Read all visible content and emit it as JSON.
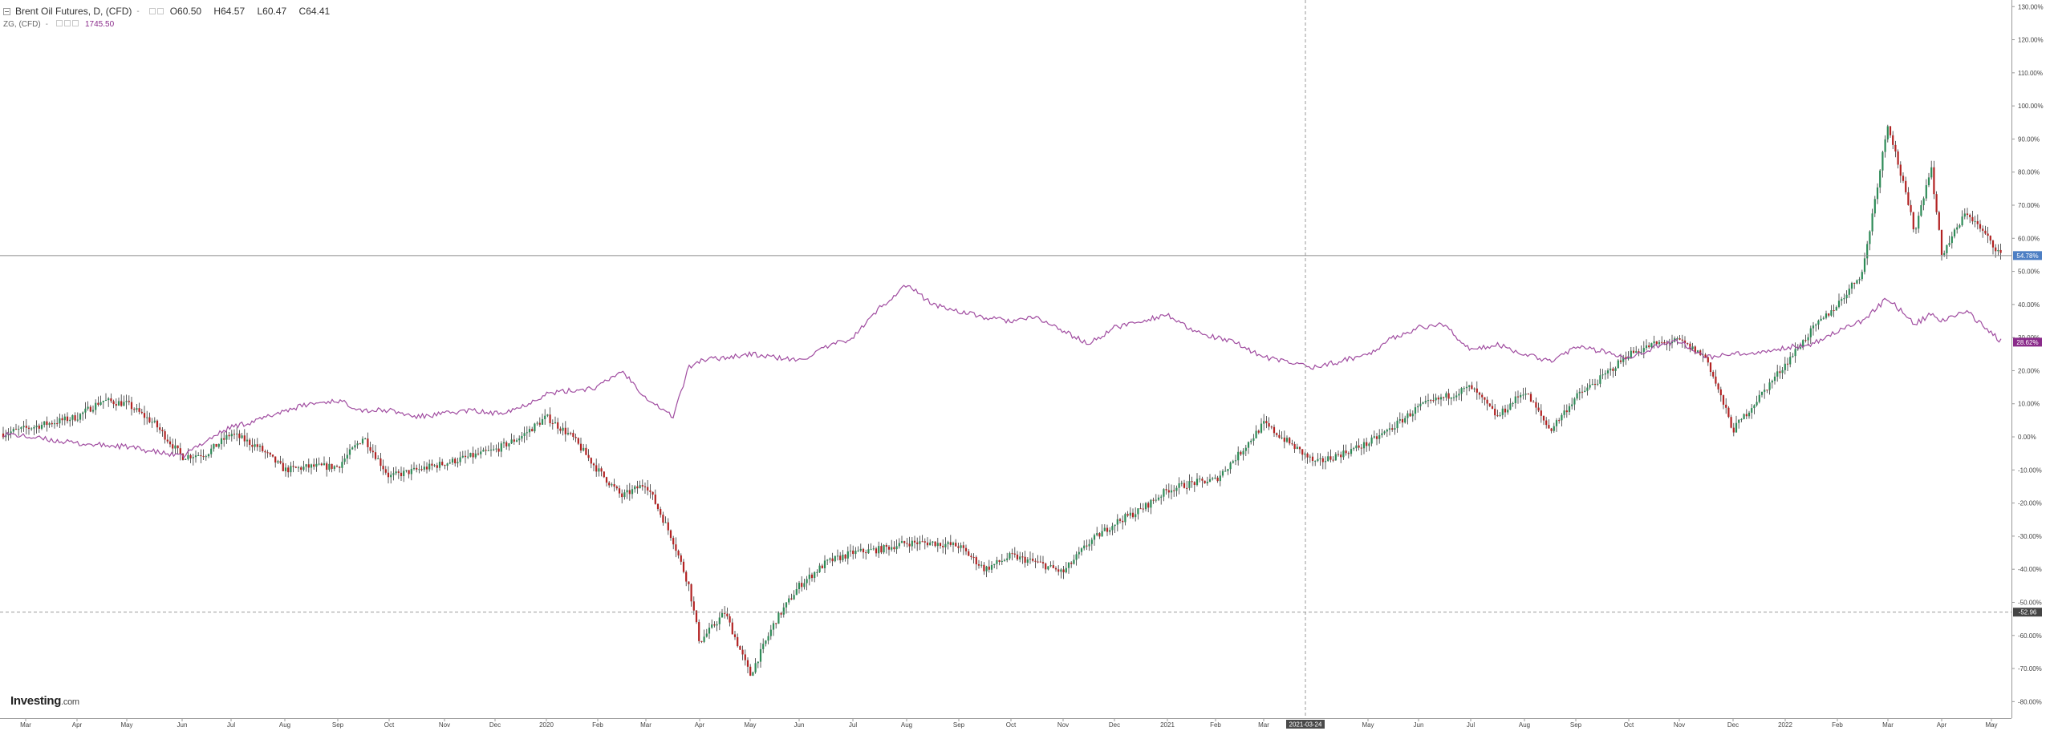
{
  "legend": {
    "main_symbol": "Brent Oil Futures, D, (CFD)",
    "main_dash": "-",
    "open_label": "O",
    "open": "60.50",
    "high_label": "H",
    "high": "64.57",
    "low_label": "L",
    "low": "60.47",
    "close_label": "C",
    "close": "64.41",
    "compare_symbol": "ZG, (CFD)",
    "compare_dash": "-",
    "compare_value": "1745.50"
  },
  "logo": {
    "name": "Investing",
    "suffix": ".com"
  },
  "colors": {
    "up": "#2e8b57",
    "down": "#b22222",
    "compare": "#a04ca0",
    "crosshair_badge": "#4a4a4a",
    "price_badge": "#4d7fc4",
    "compare_badge": "#8a2b8a",
    "low_badge": "#444444"
  },
  "chart_data": {
    "type": "line",
    "y_unit": "% change",
    "ylim": [
      -85,
      132
    ],
    "y_ticks": [
      "130.00%",
      "120.00%",
      "110.00%",
      "100.00%",
      "90.00%",
      "80.00%",
      "70.00%",
      "60.00%",
      "50.00%",
      "40.00%",
      "30.00%",
      "20.00%",
      "10.00%",
      "0.00%",
      "-10.00%",
      "-20.00%",
      "-30.00%",
      "-40.00%",
      "-50.00%",
      "-60.00%",
      "-70.00%",
      "-80.00%"
    ],
    "x_labels": [
      "Mar",
      "Apr",
      "May",
      "Jun",
      "Jul",
      "Aug",
      "Sep",
      "Oct",
      "Nov",
      "Dec",
      "2020",
      "Feb",
      "Mar",
      "Apr",
      "May",
      "Jun",
      "Jul",
      "Aug",
      "Sep",
      "Oct",
      "Nov",
      "Dec",
      "2021",
      "Feb",
      "Mar",
      "May",
      "Jun",
      "Jul",
      "Aug",
      "Sep",
      "Oct",
      "Nov",
      "Dec",
      "2022",
      "Feb",
      "Mar",
      "Apr",
      "May"
    ],
    "crosshair": {
      "x_label": "2021-03-24",
      "y_label": "-52.96",
      "y_value": -52.96
    },
    "last_labels": {
      "brent": "54.78%",
      "gold": "28.62%"
    },
    "grid": false,
    "series": [
      {
        "name": "Brent Oil Futures, D, (CFD)",
        "style": "candlestick",
        "anchors": [
          [
            "Mar",
            1
          ],
          [
            "Apr",
            6
          ],
          [
            "Apr+",
            11
          ],
          [
            "May",
            10
          ],
          [
            "May+",
            4
          ],
          [
            "Jun",
            -6
          ],
          [
            "Jun+",
            -5
          ],
          [
            "Jul",
            1
          ],
          [
            "Jul+",
            -3
          ],
          [
            "Aug",
            -10
          ],
          [
            "Aug+",
            -9
          ],
          [
            "Sep",
            -9
          ],
          [
            "Sep+",
            0
          ],
          [
            "Oct",
            -12
          ],
          [
            "Oct+",
            -10
          ],
          [
            "Nov",
            -8
          ],
          [
            "Nov+",
            -6
          ],
          [
            "Dec",
            -4
          ],
          [
            "Dec+",
            0
          ],
          [
            "2020",
            6
          ],
          [
            "2020+",
            0
          ],
          [
            "Feb",
            -10
          ],
          [
            "Feb+",
            -18
          ],
          [
            "Mar",
            -14
          ],
          [
            "Mar+",
            -31
          ],
          [
            "Mar++",
            -45
          ],
          [
            "Apr",
            -62
          ],
          [
            "Apr+",
            -53
          ],
          [
            "May",
            -72
          ],
          [
            "May+",
            -56
          ],
          [
            "Jun",
            -45
          ],
          [
            "Jun+",
            -38
          ],
          [
            "Jul",
            -35
          ],
          [
            "Jul+",
            -34
          ],
          [
            "Aug",
            -32
          ],
          [
            "Aug+",
            -32
          ],
          [
            "Sep",
            -33
          ],
          [
            "Sep+",
            -40
          ],
          [
            "Oct",
            -36
          ],
          [
            "Oct+",
            -38
          ],
          [
            "Nov",
            -41
          ],
          [
            "Nov+",
            -32
          ],
          [
            "Dec",
            -26
          ],
          [
            "Dec+",
            -22
          ],
          [
            "2021",
            -16
          ],
          [
            "2021+",
            -14
          ],
          [
            "Feb",
            -13
          ],
          [
            "Feb+",
            -5
          ],
          [
            "Mar",
            4
          ],
          [
            "Mar+",
            -8
          ],
          [
            "May",
            -2
          ],
          [
            "May+",
            3
          ],
          [
            "Jun",
            9
          ],
          [
            "Jun+",
            12
          ],
          [
            "Jul",
            15
          ],
          [
            "Jul+",
            6
          ],
          [
            "Aug",
            14
          ],
          [
            "Aug+",
            2
          ],
          [
            "Sep",
            12
          ],
          [
            "Sep+",
            18
          ],
          [
            "Oct",
            25
          ],
          [
            "Oct+",
            28
          ],
          [
            "Nov",
            29
          ],
          [
            "Nov+",
            24
          ],
          [
            "Dec",
            2
          ],
          [
            "Dec+",
            12
          ],
          [
            "2022",
            22
          ],
          [
            "2022+",
            32
          ],
          [
            "Feb",
            40
          ],
          [
            "Feb+",
            50
          ],
          [
            "Mar",
            95
          ],
          [
            "Mar+",
            62
          ],
          [
            "Mar++",
            82
          ],
          [
            "Apr",
            55
          ],
          [
            "Apr+",
            68
          ],
          [
            "May",
            54.78
          ]
        ]
      },
      {
        "name": "ZG, (CFD)",
        "style": "line",
        "anchors": [
          [
            "Mar",
            1
          ],
          [
            "Apr",
            -2
          ],
          [
            "May",
            -3
          ],
          [
            "Jun",
            -6
          ],
          [
            "Jun+",
            -1
          ],
          [
            "Jul",
            3
          ],
          [
            "Jul+",
            5
          ],
          [
            "Aug",
            8
          ],
          [
            "Aug+",
            10
          ],
          [
            "Sep",
            11
          ],
          [
            "Sep+",
            8
          ],
          [
            "Oct",
            8
          ],
          [
            "Oct+",
            6
          ],
          [
            "Nov",
            7
          ],
          [
            "Nov+",
            8
          ],
          [
            "Dec",
            7
          ],
          [
            "Dec+",
            9
          ],
          [
            "2020",
            13
          ],
          [
            "2020+",
            14
          ],
          [
            "Feb",
            15
          ],
          [
            "Feb+",
            20
          ],
          [
            "Mar",
            12
          ],
          [
            "Mar+",
            6
          ],
          [
            "Mar++",
            21
          ],
          [
            "Apr",
            23
          ],
          [
            "Apr+",
            24
          ],
          [
            "May",
            25
          ],
          [
            "May+",
            24
          ],
          [
            "Jun",
            23
          ],
          [
            "Jun+",
            27
          ],
          [
            "Jul",
            30
          ],
          [
            "Jul+",
            39
          ],
          [
            "Aug",
            46
          ],
          [
            "Aug+",
            40
          ],
          [
            "Sep",
            38
          ],
          [
            "Sep+",
            36
          ],
          [
            "Oct",
            35
          ],
          [
            "Oct+",
            36
          ],
          [
            "Nov",
            32
          ],
          [
            "Nov+",
            28
          ],
          [
            "Dec",
            33
          ],
          [
            "Dec+",
            35
          ],
          [
            "2021",
            37
          ],
          [
            "2021+",
            32
          ],
          [
            "Feb",
            30
          ],
          [
            "Feb+",
            28
          ],
          [
            "Mar",
            24
          ],
          [
            "Mar+",
            21
          ],
          [
            "May",
            25
          ],
          [
            "May+",
            30
          ],
          [
            "Jun",
            33
          ],
          [
            "Jun+",
            34
          ],
          [
            "Jul",
            26
          ],
          [
            "Jul+",
            28
          ],
          [
            "Aug",
            25
          ],
          [
            "Aug+",
            23
          ],
          [
            "Sep",
            27
          ],
          [
            "Sep+",
            26
          ],
          [
            "Oct",
            24
          ],
          [
            "Oct+",
            27
          ],
          [
            "Nov",
            29
          ],
          [
            "Nov+",
            24
          ],
          [
            "Dec",
            25
          ],
          [
            "Dec+",
            25
          ],
          [
            "2022",
            27
          ],
          [
            "2022+",
            28
          ],
          [
            "Feb",
            32
          ],
          [
            "Feb+",
            35
          ],
          [
            "Mar",
            42
          ],
          [
            "Mar+",
            34
          ],
          [
            "Mar++",
            37
          ],
          [
            "Apr",
            35
          ],
          [
            "Apr+",
            38
          ],
          [
            "May",
            28.62
          ]
        ]
      }
    ]
  }
}
